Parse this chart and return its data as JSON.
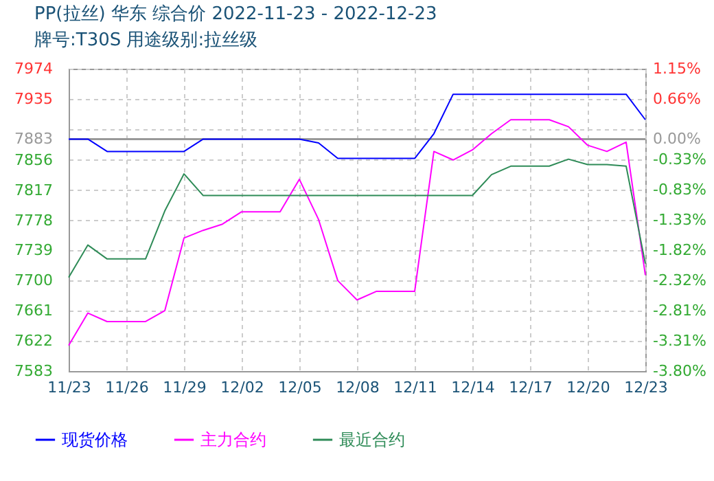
{
  "chart_data": {
    "type": "line",
    "title": "PP(拉丝) 华东 综合价 2022-11-23 - 2022-12-23",
    "subtitle": "牌号:T30S 用途级别:拉丝级",
    "x": [
      "2022-11-23",
      "2022-11-24",
      "2022-11-25",
      "2022-11-26",
      "2022-11-27",
      "2022-11-28",
      "2022-11-29",
      "2022-11-30",
      "2022-12-01",
      "2022-12-02",
      "2022-12-03",
      "2022-12-04",
      "2022-12-05",
      "2022-12-06",
      "2022-12-07",
      "2022-12-08",
      "2022-12-09",
      "2022-12-10",
      "2022-12-11",
      "2022-12-12",
      "2022-12-13",
      "2022-12-14",
      "2022-12-15",
      "2022-12-16",
      "2022-12-17",
      "2022-12-18",
      "2022-12-19",
      "2022-12-20",
      "2022-12-21",
      "2022-12-22",
      "2022-12-23"
    ],
    "series": [
      {
        "name": "现货价格",
        "color": "#0000ff",
        "values": [
          7883,
          7883,
          7867,
          7867,
          7867,
          7867,
          7867,
          7883,
          7883,
          7883,
          7883,
          7883,
          7883,
          7878,
          7858,
          7858,
          7858,
          7858,
          7858,
          7890,
          7941,
          7941,
          7941,
          7941,
          7941,
          7941,
          7941,
          7941,
          7941,
          7941,
          7908
        ]
      },
      {
        "name": "主力合约",
        "color": "#ff00ff",
        "values": [
          7616,
          7658,
          7647,
          7647,
          7647,
          7661,
          7755,
          7765,
          7773,
          7789,
          7789,
          7789,
          7831,
          7779,
          7700,
          7675,
          7686,
          7686,
          7686,
          7867,
          7856,
          7869,
          7890,
          7908,
          7908,
          7908,
          7899,
          7875,
          7867,
          7879,
          7707
        ]
      },
      {
        "name": "最近合约",
        "color": "#2e8b57",
        "values": [
          7704,
          7746,
          7728,
          7728,
          7728,
          7790,
          7838,
          7810,
          7810,
          7810,
          7810,
          7810,
          7810,
          7810,
          7810,
          7810,
          7810,
          7810,
          7810,
          7810,
          7810,
          7810,
          7837,
          7848,
          7848,
          7848,
          7857,
          7850,
          7850,
          7848,
          7722
        ]
      }
    ],
    "xlim": [
      "2022-11-23",
      "2022-12-23"
    ],
    "xticks": [
      {
        "value": "2022-11-23",
        "label": "11/23"
      },
      {
        "value": "2022-11-26",
        "label": "11/26"
      },
      {
        "value": "2022-11-29",
        "label": "11/29"
      },
      {
        "value": "2022-12-02",
        "label": "12/02"
      },
      {
        "value": "2022-12-05",
        "label": "12/05"
      },
      {
        "value": "2022-12-08",
        "label": "12/08"
      },
      {
        "value": "2022-12-11",
        "label": "12/11"
      },
      {
        "value": "2022-12-14",
        "label": "12/14"
      },
      {
        "value": "2022-12-17",
        "label": "12/17"
      },
      {
        "value": "2022-12-20",
        "label": "12/20"
      },
      {
        "value": "2022-12-23",
        "label": "12/23"
      }
    ],
    "ylim": [
      7583,
      7974
    ],
    "yticks": [
      7583,
      7622,
      7661,
      7700,
      7739,
      7778,
      7817,
      7856,
      7883,
      {
        "value": 7896,
        "label": null
      },
      7935,
      7974
    ],
    "y2lim": [
      -3.8,
      1.15
    ],
    "y2ticks": [
      {
        "value": -3.8,
        "label": "-3.80%"
      },
      {
        "value": -3.31,
        "label": "-3.31%"
      },
      {
        "value": -2.81,
        "label": "-2.81%"
      },
      {
        "value": -2.32,
        "label": "-2.32%"
      },
      {
        "value": -1.82,
        "label": "-1.82%"
      },
      {
        "value": -1.33,
        "label": "-1.33%"
      },
      {
        "value": -0.83,
        "label": "-0.83%"
      },
      {
        "value": -0.33,
        "label": "-0.33%"
      },
      {
        "value": 0,
        "label": "0.00%"
      },
      {
        "value": 0.66,
        "label": "0.66%"
      },
      {
        "value": 1.15,
        "label": "1.15%"
      }
    ],
    "ref_lines": [
      {
        "axis": "y",
        "value": 7883,
        "color": "#999999"
      }
    ],
    "grid": true,
    "legend": "bottom left",
    "line_style": "solid",
    "marker": "none"
  }
}
